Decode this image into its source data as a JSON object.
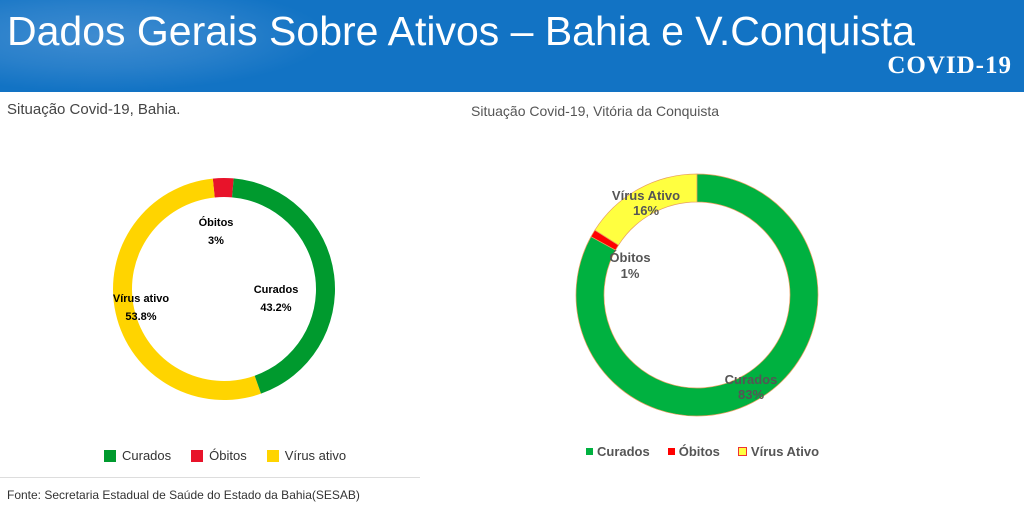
{
  "header": {
    "title": "Dados Gerais Sobre Ativos – Bahia e V.Conquista",
    "badge": "COVID-19"
  },
  "source": "Fonte: Secretaria Estadual de Saúde do Estado da Bahia(SESAB)",
  "chart_data": [
    {
      "type": "pie",
      "donut": true,
      "title": "Situação Covid-19, Bahia.",
      "legend": "bottom",
      "slices": [
        {
          "label": "Curados",
          "value": 43.2,
          "text": "43.2%",
          "color": "#009a2e"
        },
        {
          "label": "Vírus ativo",
          "value": 53.8,
          "text": "53.8%",
          "color": "#ffd400"
        },
        {
          "label": "Óbitos",
          "value": 3,
          "text": "3%",
          "color": "#e8132a"
        }
      ],
      "legend_labels": [
        "Curados",
        "Óbitos",
        "Vírus ativo"
      ]
    },
    {
      "type": "pie",
      "donut": true,
      "title": "Situação Covid-19, Vitória da Conquista",
      "legend": "bottom",
      "slices": [
        {
          "label": "Curados",
          "value": 83,
          "text": "83%",
          "color": "#00b140"
        },
        {
          "label": "Óbitos",
          "value": 1,
          "text": "1%",
          "color": "#ff0000"
        },
        {
          "label": "Vírus Ativo",
          "value": 16,
          "text": "16%",
          "color": "#ffff40"
        }
      ],
      "legend_labels": [
        "Curados",
        "Óbitos",
        "Vírus Ativo"
      ]
    }
  ]
}
